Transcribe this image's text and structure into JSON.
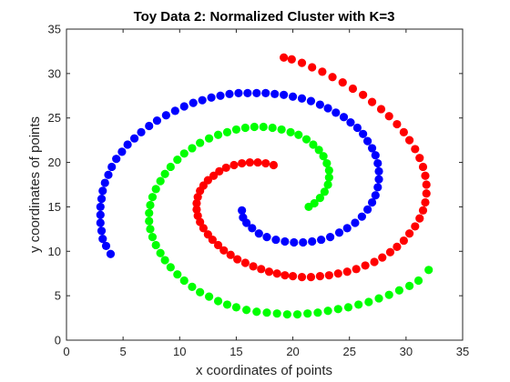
{
  "chart_data": {
    "type": "scatter",
    "title": "Toy Data 2: Normalized Cluster with K=3",
    "xlabel": "x coordinates of points",
    "ylabel": "y coordinates of points",
    "xlim": [
      0,
      35
    ],
    "ylim": [
      0,
      35
    ],
    "xticks": [
      "0",
      "5",
      "10",
      "15",
      "20",
      "25",
      "30",
      "35"
    ],
    "yticks": [
      "0",
      "5",
      "10",
      "15",
      "20",
      "25",
      "30",
      "35"
    ],
    "grid": false,
    "legend": "none",
    "series": [
      {
        "color": "#ff0000",
        "points": [
          [
            18.3,
            19.7
          ],
          [
            17.6,
            19.9
          ],
          [
            16.9,
            20.0
          ],
          [
            16.2,
            20.0
          ],
          [
            15.5,
            19.9
          ],
          [
            14.8,
            19.7
          ],
          [
            14.1,
            19.4
          ],
          [
            13.5,
            19.0
          ],
          [
            13.0,
            18.5
          ],
          [
            12.5,
            18.0
          ],
          [
            12.1,
            17.4
          ],
          [
            11.8,
            16.8
          ],
          [
            11.6,
            16.1
          ],
          [
            11.5,
            15.4
          ],
          [
            11.5,
            14.7
          ],
          [
            11.6,
            14.0
          ],
          [
            11.8,
            13.3
          ],
          [
            12.1,
            12.6
          ],
          [
            12.5,
            11.9
          ],
          [
            12.9,
            11.3
          ],
          [
            13.4,
            10.7
          ],
          [
            13.9,
            10.1
          ],
          [
            14.5,
            9.6
          ],
          [
            15.1,
            9.1
          ],
          [
            15.8,
            8.7
          ],
          [
            16.5,
            8.3
          ],
          [
            17.2,
            8.0
          ],
          [
            17.9,
            7.7
          ],
          [
            18.6,
            7.5
          ],
          [
            19.3,
            7.3
          ],
          [
            20.0,
            7.2
          ],
          [
            20.8,
            7.1
          ],
          [
            21.6,
            7.1
          ],
          [
            22.4,
            7.2
          ],
          [
            23.2,
            7.3
          ],
          [
            24.0,
            7.5
          ],
          [
            24.8,
            7.7
          ],
          [
            25.6,
            8.0
          ],
          [
            26.4,
            8.4
          ],
          [
            27.2,
            8.8
          ],
          [
            27.9,
            9.3
          ],
          [
            28.6,
            9.9
          ],
          [
            29.2,
            10.5
          ],
          [
            29.8,
            11.2
          ],
          [
            30.3,
            12.0
          ],
          [
            30.8,
            12.8
          ],
          [
            31.2,
            13.7
          ],
          [
            31.5,
            14.6
          ],
          [
            31.7,
            15.5
          ],
          [
            31.8,
            16.5
          ],
          [
            31.8,
            17.5
          ],
          [
            31.7,
            18.5
          ],
          [
            31.5,
            19.5
          ],
          [
            31.2,
            20.5
          ],
          [
            30.8,
            21.5
          ],
          [
            30.3,
            22.5
          ],
          [
            29.8,
            23.4
          ],
          [
            29.2,
            24.3
          ],
          [
            28.5,
            25.2
          ],
          [
            27.8,
            26.0
          ],
          [
            27.0,
            26.8
          ],
          [
            26.2,
            27.6
          ],
          [
            25.3,
            28.3
          ],
          [
            24.4,
            29.0
          ],
          [
            23.5,
            29.6
          ],
          [
            22.6,
            30.2
          ],
          [
            21.7,
            30.7
          ],
          [
            20.8,
            31.2
          ],
          [
            19.9,
            31.6
          ],
          [
            19.2,
            31.8
          ]
        ]
      },
      {
        "color": "#00ff00",
        "points": [
          [
            21.4,
            15.0
          ],
          [
            21.9,
            15.4
          ],
          [
            22.4,
            16.0
          ],
          [
            22.8,
            16.7
          ],
          [
            23.1,
            17.5
          ],
          [
            23.2,
            18.3
          ],
          [
            23.2,
            19.1
          ],
          [
            23.0,
            19.9
          ],
          [
            22.7,
            20.7
          ],
          [
            22.3,
            21.4
          ],
          [
            21.8,
            22.0
          ],
          [
            21.2,
            22.6
          ],
          [
            20.5,
            23.1
          ],
          [
            19.8,
            23.4
          ],
          [
            19.0,
            23.7
          ],
          [
            18.2,
            23.9
          ],
          [
            17.4,
            24.0
          ],
          [
            16.6,
            24.0
          ],
          [
            15.8,
            23.9
          ],
          [
            15.0,
            23.7
          ],
          [
            14.2,
            23.4
          ],
          [
            13.4,
            23.1
          ],
          [
            12.6,
            22.7
          ],
          [
            11.8,
            22.2
          ],
          [
            11.1,
            21.6
          ],
          [
            10.4,
            21.0
          ],
          [
            9.8,
            20.3
          ],
          [
            9.2,
            19.5
          ],
          [
            8.7,
            18.7
          ],
          [
            8.3,
            17.9
          ],
          [
            7.9,
            17.0
          ],
          [
            7.6,
            16.1
          ],
          [
            7.4,
            15.2
          ],
          [
            7.3,
            14.3
          ],
          [
            7.3,
            13.4
          ],
          [
            7.4,
            12.5
          ],
          [
            7.6,
            11.6
          ],
          [
            7.9,
            10.7
          ],
          [
            8.3,
            9.8
          ],
          [
            8.7,
            9.0
          ],
          [
            9.2,
            8.2
          ],
          [
            9.8,
            7.4
          ],
          [
            10.4,
            6.7
          ],
          [
            11.1,
            6.0
          ],
          [
            11.8,
            5.4
          ],
          [
            12.6,
            4.9
          ],
          [
            13.4,
            4.4
          ],
          [
            14.2,
            4.0
          ],
          [
            15.0,
            3.7
          ],
          [
            15.9,
            3.4
          ],
          [
            16.8,
            3.2
          ],
          [
            17.7,
            3.1
          ],
          [
            18.6,
            3.0
          ],
          [
            19.5,
            2.9
          ],
          [
            20.4,
            2.9
          ],
          [
            21.3,
            3.0
          ],
          [
            22.2,
            3.1
          ],
          [
            23.1,
            3.3
          ],
          [
            24.0,
            3.5
          ],
          [
            24.9,
            3.7
          ],
          [
            25.8,
            4.0
          ],
          [
            26.7,
            4.3
          ],
          [
            27.6,
            4.7
          ],
          [
            28.5,
            5.1
          ],
          [
            29.4,
            5.6
          ],
          [
            30.3,
            6.1
          ],
          [
            31.1,
            6.7
          ],
          [
            32.0,
            7.9
          ]
        ]
      },
      {
        "color": "#0000ff",
        "points": [
          [
            3.9,
            9.7
          ],
          [
            3.5,
            10.6
          ],
          [
            3.2,
            11.4
          ],
          [
            3.1,
            12.3
          ],
          [
            3.0,
            13.2
          ],
          [
            3.0,
            14.1
          ],
          [
            3.0,
            15.0
          ],
          [
            3.1,
            15.9
          ],
          [
            3.2,
            16.8
          ],
          [
            3.4,
            17.7
          ],
          [
            3.7,
            18.6
          ],
          [
            4.0,
            19.5
          ],
          [
            4.4,
            20.4
          ],
          [
            4.9,
            21.2
          ],
          [
            5.4,
            22.0
          ],
          [
            6.0,
            22.7
          ],
          [
            6.6,
            23.4
          ],
          [
            7.3,
            24.1
          ],
          [
            8.0,
            24.7
          ],
          [
            8.8,
            25.3
          ],
          [
            9.6,
            25.8
          ],
          [
            10.4,
            26.3
          ],
          [
            11.2,
            26.7
          ],
          [
            12.0,
            27.0
          ],
          [
            12.8,
            27.3
          ],
          [
            13.6,
            27.5
          ],
          [
            14.4,
            27.7
          ],
          [
            15.2,
            27.8
          ],
          [
            16.0,
            27.8
          ],
          [
            16.8,
            27.8
          ],
          [
            17.6,
            27.8
          ],
          [
            18.4,
            27.7
          ],
          [
            19.2,
            27.6
          ],
          [
            20.0,
            27.4
          ],
          [
            20.8,
            27.2
          ],
          [
            21.6,
            26.9
          ],
          [
            22.4,
            26.5
          ],
          [
            23.1,
            26.1
          ],
          [
            23.8,
            25.6
          ],
          [
            24.5,
            25.1
          ],
          [
            25.1,
            24.5
          ],
          [
            25.7,
            23.9
          ],
          [
            26.2,
            23.2
          ],
          [
            26.6,
            22.4
          ],
          [
            27.0,
            21.6
          ],
          [
            27.3,
            20.8
          ],
          [
            27.5,
            19.9
          ],
          [
            27.6,
            19.0
          ],
          [
            27.6,
            18.1
          ],
          [
            27.5,
            17.2
          ],
          [
            27.3,
            16.3
          ],
          [
            27.0,
            15.5
          ],
          [
            26.6,
            14.7
          ],
          [
            26.1,
            13.9
          ],
          [
            25.5,
            13.2
          ],
          [
            24.8,
            12.6
          ],
          [
            24.1,
            12.1
          ],
          [
            23.3,
            11.6
          ],
          [
            22.5,
            11.3
          ],
          [
            21.7,
            11.1
          ],
          [
            20.9,
            11.0
          ],
          [
            20.1,
            11.0
          ],
          [
            19.3,
            11.1
          ],
          [
            18.5,
            11.3
          ],
          [
            17.7,
            11.6
          ],
          [
            17.0,
            12.0
          ],
          [
            16.4,
            12.6
          ],
          [
            15.9,
            13.2
          ],
          [
            15.6,
            13.8
          ],
          [
            15.5,
            14.6
          ]
        ]
      }
    ]
  }
}
